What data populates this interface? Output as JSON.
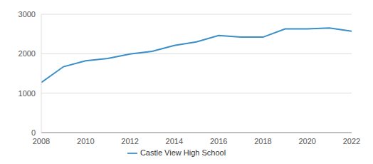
{
  "chart_data": {
    "type": "line",
    "x": [
      2008,
      2009,
      2010,
      2011,
      2012,
      2013,
      2014,
      2015,
      2016,
      2017,
      2018,
      2019,
      2020,
      2021,
      2022
    ],
    "series": [
      {
        "name": "Castle View High School",
        "color": "#3a8fc7",
        "values": [
          1270,
          1670,
          1820,
          1880,
          1990,
          2060,
          2210,
          2300,
          2460,
          2420,
          2420,
          2630,
          2630,
          2650,
          2570
        ]
      }
    ],
    "xlim": [
      2008,
      2022
    ],
    "xticks": [
      2008,
      2010,
      2012,
      2014,
      2016,
      2018,
      2020,
      2022
    ],
    "ylim": [
      0,
      3000
    ],
    "yticks": [
      0,
      1000,
      2000,
      3000
    ],
    "grid": true,
    "legend": "bottom"
  }
}
